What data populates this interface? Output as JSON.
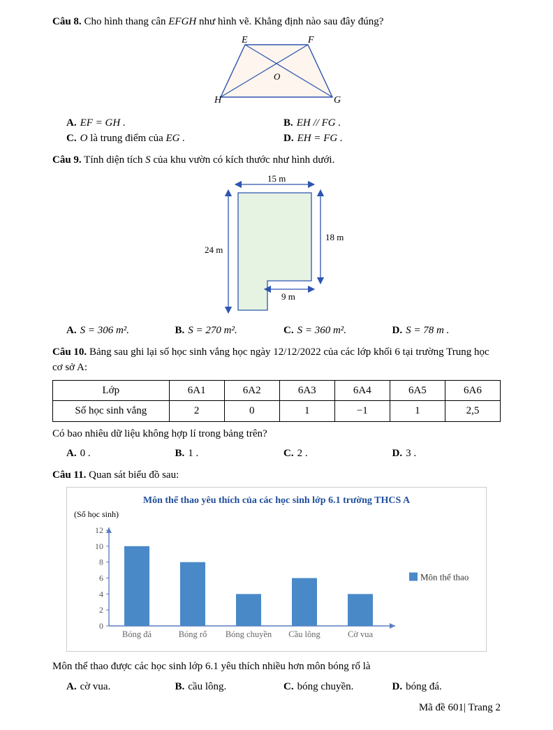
{
  "q8": {
    "label": "Câu 8.",
    "prompt_before": " Cho hình thang cân ",
    "prompt_mid": "EFGH",
    "prompt_after": " như hình vẽ. Khẳng định nào sau đây đúng?",
    "trapezoid": {
      "E": "E",
      "F": "F",
      "G": "G",
      "H": "H",
      "O": "O",
      "fill": "#fdf5ee",
      "stroke": "#2e55b0",
      "diag": "#2e55b0"
    },
    "A": "EF = GH .",
    "B": "EH // FG .",
    "C_pre": "O",
    "C_mid": " là trung điểm của ",
    "C_post": "EG .",
    "D": "EH = FG ."
  },
  "q9": {
    "label": "Câu 9.",
    "prompt_before": " Tính diện tích ",
    "prompt_S": "S",
    "prompt_after": " của khu vườn có kích thước như hình dưới.",
    "dims": {
      "w_top": "15 m",
      "h_left": "24 m",
      "h_right": "18 m",
      "w_notch": "9 m"
    },
    "shape": {
      "fill": "#e6f2e2",
      "stroke": "#2e55b0",
      "arrow": "#2e55b0"
    },
    "A": "S = 306 m².",
    "B": "S = 270 m².",
    "C": "S = 360 m².",
    "D": "S = 78 m ."
  },
  "q10": {
    "label": "Câu 10.",
    "prompt": " Bảng sau ghi lại số học sinh vắng học ngày 12/12/2022 của các lớp khối 6 tại trường Trung học cơ sở A:",
    "table": {
      "header": [
        "Lớp",
        "6A1",
        "6A2",
        "6A3",
        "6A4",
        "6A5",
        "6A6"
      ],
      "row": [
        "Số học sinh vắng",
        "2",
        "0",
        "1",
        "−1",
        "1",
        "2,5"
      ]
    },
    "after": "Có bao nhiêu dữ liệu không hợp lí trong bảng trên?",
    "A": "0 .",
    "B": "1 .",
    "C": "2 .",
    "D": "3 ."
  },
  "q11": {
    "label": "Câu 11.",
    "prompt": " Quan sát biểu đồ sau:",
    "chart": {
      "type": "bar",
      "title": "Môn thể thao yêu thích của các học sinh lớp 6.1 trường THCS A",
      "y_note": "(Số học sinh)",
      "categories": [
        "Bóng đá",
        "Bóng rổ",
        "Bóng chuyền",
        "Cầu lông",
        "Cờ vua"
      ],
      "values": [
        10,
        8,
        4,
        6,
        4
      ],
      "ylim": [
        0,
        12
      ],
      "ytick_step": 2,
      "bar_color": "#4a89c8",
      "axis_color": "#5b7fbf",
      "legend": "Môn thể thao",
      "cat_label_color": "#666"
    },
    "after": "Môn thể thao được các học sinh lớp 6.1 yêu thích nhiều hơn môn bóng rổ là",
    "A": "cờ vua.",
    "B": "cầu lông.",
    "C": "bóng chuyền.",
    "D": "bóng đá."
  },
  "footer": "Mã đề 601| Trang 2"
}
